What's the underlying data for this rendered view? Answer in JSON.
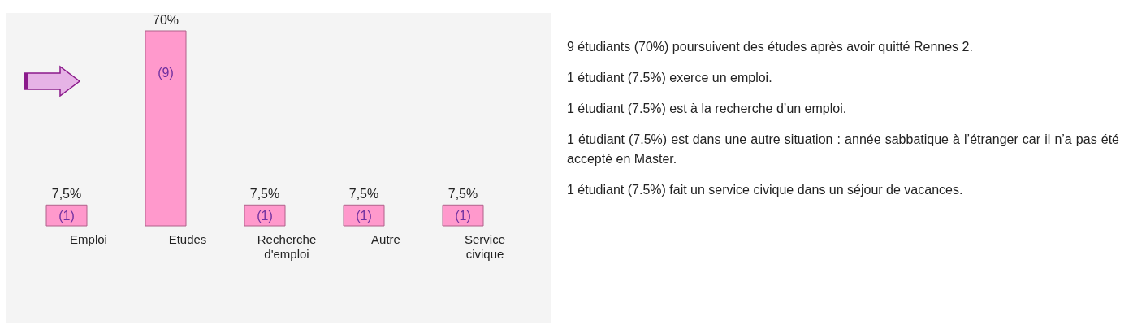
{
  "chart_data": {
    "type": "bar",
    "categories": [
      "Emploi",
      "Etudes",
      "Recherche d'emploi",
      "Autre",
      "Service civique"
    ],
    "values": [
      7.5,
      70,
      7.5,
      7.5,
      7.5
    ],
    "color": "#ff99cc",
    "value_labels": [
      "7,5%",
      "70%",
      "7,5%",
      "7,5%",
      "7,5%"
    ],
    "grid": false,
    "legend": false,
    "annotations": [
      {
        "text": "(1)",
        "x": "Emploi",
        "y": 3.75
      },
      {
        "text": "(9)",
        "x": "Etudes",
        "y": 55
      },
      {
        "text": "(1)",
        "x": "Recherche d'emploi",
        "y": 3.75
      },
      {
        "text": "(1)",
        "x": "Autre",
        "y": 3.75
      },
      {
        "text": "(1)",
        "x": "Service civique",
        "y": 3.75
      },
      "9 étudiants (70%) poursuivent des études après avoir quitté Rennes 2.",
      "1 étudiant (7.5%) exerce un emploi.",
      "1 étudiant (7.5%) est à la recherche d’un emploi.",
      "1 étudiant (7.5%) est dans une autre situation : année sabbatique à l’étranger car il n’a pas été accepté en Master.",
      "1 étudiant (7.5%) fait un service civique dans un séjour de vacances."
    ]
  }
}
